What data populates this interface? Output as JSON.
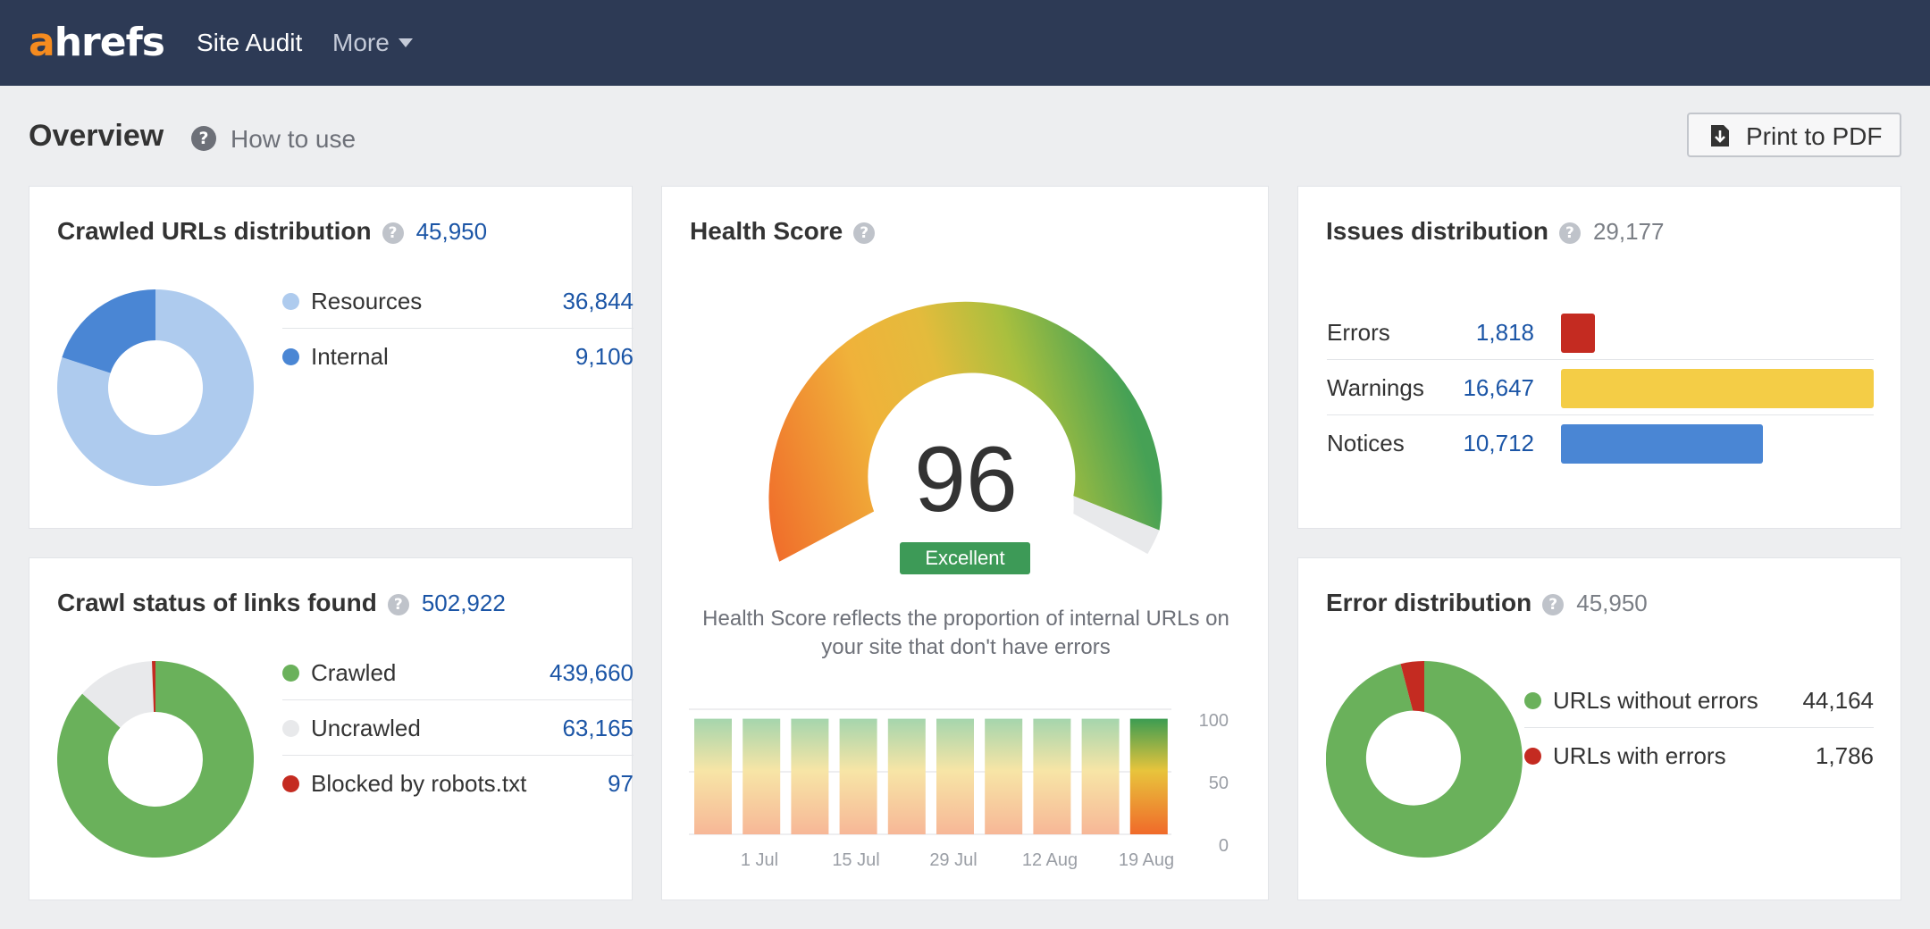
{
  "nav": {
    "logo_a": "a",
    "logo_rest": "hrefs",
    "site_audit": "Site Audit",
    "more": "More"
  },
  "header": {
    "title": "Overview",
    "help": "?",
    "how_to_use": "How to use",
    "print_label": "Print to PDF",
    "print_icon": "download-icon"
  },
  "crawled_urls": {
    "title": "Crawled URLs distribution",
    "total": "45,950",
    "items": [
      {
        "label": "Resources",
        "value": "36,844",
        "color": "#aecbee"
      },
      {
        "label": "Internal",
        "value": "9,106",
        "color": "#4a86d4"
      }
    ]
  },
  "crawl_status": {
    "title": "Crawl status of links found",
    "total": "502,922",
    "items": [
      {
        "label": "Crawled",
        "value": "439,660",
        "color": "#6ab15b"
      },
      {
        "label": "Uncrawled",
        "value": "63,165",
        "color": "#e8e9eb"
      },
      {
        "label": "Blocked by robots.txt",
        "value": "97",
        "color": "#c42b21"
      }
    ]
  },
  "health": {
    "title": "Health Score",
    "score": "96",
    "rating": "Excellent",
    "description": "Health Score reflects the proportion of internal URLs on your site that don't have errors"
  },
  "issues": {
    "title": "Issues distribution",
    "total": "29,177",
    "items": [
      {
        "label": "Errors",
        "value": "1,818",
        "color": "#c42b21"
      },
      {
        "label": "Warnings",
        "value": "16,647",
        "color": "#f4cd46"
      },
      {
        "label": "Notices",
        "value": "10,712",
        "color": "#4a86d4"
      }
    ]
  },
  "error_distribution": {
    "title": "Error distribution",
    "total": "45,950",
    "items": [
      {
        "label": "URLs without errors",
        "value": "44,164",
        "color": "#6ab15b"
      },
      {
        "label": "URLs with errors",
        "value": "1,786",
        "color": "#c42b21"
      }
    ]
  },
  "chart_data": {
    "type": "bar",
    "x": [
      "",
      "1 Jul",
      "",
      "15 Jul",
      "",
      "29 Jul",
      "",
      "12 Aug",
      "",
      "19 Aug"
    ],
    "values": [
      96,
      96,
      96,
      96,
      96,
      96,
      96,
      96,
      96,
      96
    ],
    "xticks": [
      "1 Jul",
      "15 Jul",
      "29 Jul",
      "12 Aug",
      "19 Aug"
    ],
    "yticks": [
      "100",
      "50",
      "0"
    ],
    "ylim": [
      0,
      100
    ],
    "grid": true
  }
}
